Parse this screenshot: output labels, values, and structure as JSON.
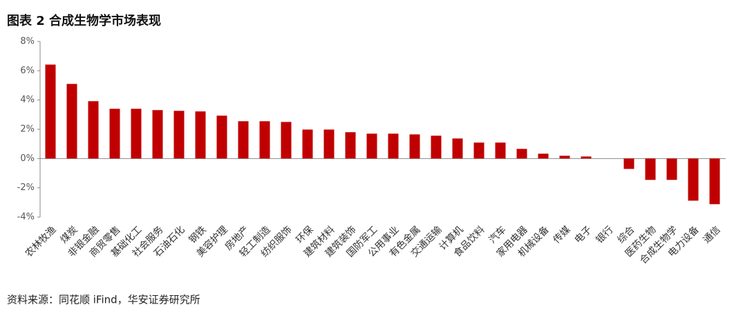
{
  "chart_data": {
    "type": "bar",
    "title": "图表 2 合成生物学市场表现",
    "source": "资料来源：同花顺 iFind，华安证券研究所",
    "categories": [
      "农林牧渔",
      "煤炭",
      "非银金融",
      "商贸零售",
      "基础化工",
      "社会服务",
      "石油石化",
      "钢铁",
      "美容护理",
      "房地产",
      "轻工制造",
      "纺织服饰",
      "环保",
      "建筑材料",
      "建筑装饰",
      "国防军工",
      "公用事业",
      "有色金属",
      "交通运输",
      "计算机",
      "食品饮料",
      "汽车",
      "家用电器",
      "机械设备",
      "传媒",
      "电子",
      "银行",
      "综合",
      "医药生物",
      "合成生物学",
      "电力设备",
      "通信"
    ],
    "values": [
      6.42,
      5.1,
      3.92,
      3.4,
      3.4,
      3.31,
      3.26,
      3.22,
      2.93,
      2.55,
      2.55,
      2.5,
      1.98,
      1.98,
      1.8,
      1.7,
      1.7,
      1.65,
      1.56,
      1.37,
      1.09,
      1.09,
      0.66,
      0.33,
      0.19,
      0.14,
      0,
      -0.71,
      -1.46,
      -1.46,
      -2.88,
      -3.12
    ],
    "color": "#c00000",
    "ylim": [
      -4,
      8
    ],
    "yticks": [
      {
        "value": -4,
        "label": "-4%"
      },
      {
        "value": -2,
        "label": "-2%"
      },
      {
        "value": 0,
        "label": "0%"
      },
      {
        "value": 2,
        "label": "2%"
      },
      {
        "value": 4,
        "label": "4%"
      },
      {
        "value": 6,
        "label": "6%"
      },
      {
        "value": 8,
        "label": "8%"
      }
    ],
    "grid": false
  }
}
